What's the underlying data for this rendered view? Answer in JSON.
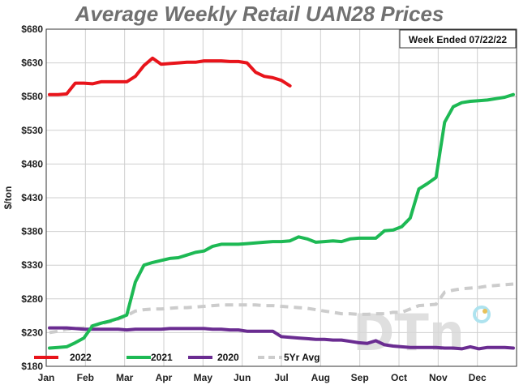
{
  "chart_data": {
    "type": "line",
    "title": "Average Weekly Retail UAN28 Prices",
    "ylabel": "$/ton",
    "xlabel": "",
    "note": "Week Ended 07/22/22",
    "ylim": [
      180,
      680
    ],
    "yticks": [
      180,
      230,
      280,
      330,
      380,
      430,
      480,
      530,
      580,
      630,
      680
    ],
    "ytick_labels": [
      "$180",
      "$230",
      "$280",
      "$330",
      "$380",
      "$430",
      "$480",
      "$530",
      "$580",
      "$630",
      "$680"
    ],
    "months": [
      "Jan",
      "Feb",
      "Mar",
      "Apr",
      "May",
      "Jun",
      "Jul",
      "Aug",
      "Sep",
      "Oct",
      "Nov",
      "Dec"
    ],
    "grid": true,
    "legend_position": "bottom",
    "series": [
      {
        "name": "2022",
        "color": "#e8141b",
        "style": "solid",
        "values": [
          583,
          583,
          584,
          600,
          600,
          599,
          602,
          602,
          602,
          602,
          610,
          626,
          637,
          628,
          629,
          630,
          631,
          631,
          633,
          633,
          633,
          632,
          632,
          630,
          616,
          610,
          608,
          604,
          596
        ]
      },
      {
        "name": "2021",
        "color": "#1db954",
        "style": "solid",
        "values": [
          207,
          208,
          209,
          215,
          222,
          240,
          244,
          247,
          251,
          256,
          305,
          330,
          334,
          337,
          340,
          341,
          345,
          349,
          351,
          358,
          361,
          361,
          361,
          362,
          363,
          364,
          365,
          365,
          366,
          372,
          369,
          364,
          365,
          366,
          365,
          369,
          370,
          370,
          370,
          381,
          382,
          387,
          400,
          443,
          451,
          460,
          542,
          565,
          571,
          573,
          574,
          575,
          577,
          579,
          583
        ]
      },
      {
        "name": "2020",
        "color": "#6a2c91",
        "style": "solid",
        "values": [
          237,
          237,
          237,
          236,
          235,
          235,
          235,
          235,
          235,
          234,
          235,
          235,
          235,
          235,
          236,
          236,
          236,
          236,
          236,
          235,
          235,
          234,
          234,
          232,
          232,
          232,
          232,
          224,
          223,
          222,
          221,
          220,
          220,
          219,
          219,
          217,
          215,
          214,
          218,
          212,
          210,
          209,
          208,
          208,
          208,
          208,
          207,
          207,
          206,
          209,
          206,
          208,
          208,
          208,
          207
        ]
      },
      {
        "name": "5Yr Avg",
        "color": "#cccccc",
        "style": "dashed",
        "values": [
          230,
          232,
          235,
          236,
          237,
          240,
          243,
          246,
          250,
          255,
          262,
          264,
          265,
          265,
          266,
          267,
          267,
          268,
          269,
          270,
          271,
          271,
          271,
          271,
          271,
          270,
          270,
          269,
          268,
          267,
          266,
          264,
          262,
          260,
          258,
          258,
          257,
          257,
          258,
          258,
          260,
          260,
          265,
          270,
          271,
          272,
          290,
          293,
          295,
          296,
          297,
          299,
          300,
          301,
          302
        ]
      }
    ]
  }
}
